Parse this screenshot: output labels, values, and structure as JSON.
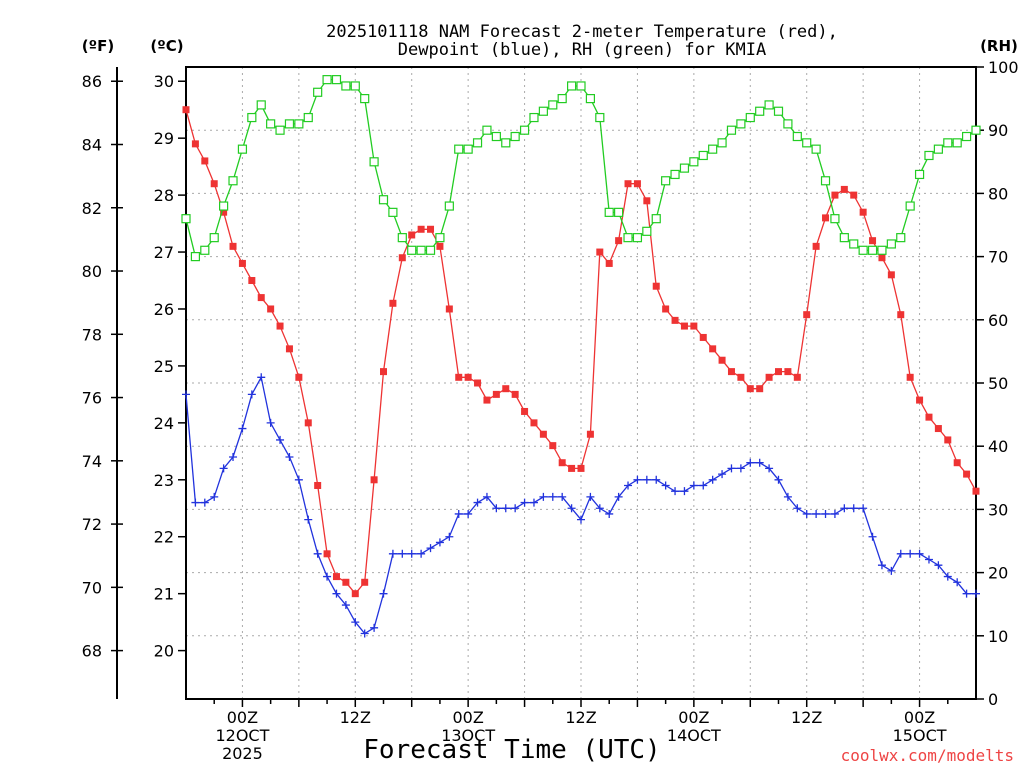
{
  "chart_data": {
    "type": "line",
    "title_line1": "2025101118 NAM Forecast 2-meter Temperature (red),",
    "title_line2": "Dewpoint (blue), RH (green) for KMIA",
    "xlabel": "Forecast Time (UTC)",
    "left_outer_unit": "(ºF)",
    "left_inner_unit": "(ºC)",
    "right_unit": "(RH)",
    "credit": "coolwx.com/modelts",
    "fahrenheit_ticks": [
      "86",
      "84",
      "82",
      "80",
      "78",
      "76",
      "74",
      "72",
      "70",
      "68"
    ],
    "celsius_ticks": [
      "30",
      "29",
      "28",
      "27",
      "26",
      "25",
      "24",
      "23",
      "22",
      "21",
      "20"
    ],
    "rh_ticks": [
      "100",
      "90",
      "80",
      "70",
      "60",
      "50",
      "40",
      "30",
      "20",
      "10",
      "0"
    ],
    "x_ticks": [
      {
        "hour": 6,
        "l1": "00Z",
        "l2": "12OCT",
        "l3": "2025"
      },
      {
        "hour": 18,
        "l1": "12Z",
        "l2": "",
        "l3": ""
      },
      {
        "hour": 30,
        "l1": "00Z",
        "l2": "13OCT",
        "l3": ""
      },
      {
        "hour": 42,
        "l1": "12Z",
        "l2": "",
        "l3": ""
      },
      {
        "hour": 54,
        "l1": "00Z",
        "l2": "14OCT",
        "l3": ""
      },
      {
        "hour": 66,
        "l1": "12Z",
        "l2": "",
        "l3": ""
      },
      {
        "hour": 78,
        "l1": "00Z",
        "l2": "15OCT",
        "l3": ""
      }
    ],
    "x_range_hours": [
      0,
      84
    ],
    "celsius_range": [
      19.15,
      30.25
    ],
    "fahrenheit_range": [
      66.47,
      86.45
    ],
    "rh_range": [
      0,
      100
    ],
    "grid": true,
    "series": [
      {
        "name": "Temperature",
        "color": "#ee3333",
        "marker": "filled-square",
        "values": [
          29.5,
          28.9,
          28.6,
          28.2,
          27.7,
          27.1,
          26.8,
          26.5,
          26.2,
          26.0,
          25.7,
          25.3,
          24.8,
          24.0,
          22.9,
          21.7,
          21.3,
          21.2,
          21.0,
          21.2,
          23.0,
          24.9,
          26.1,
          26.9,
          27.3,
          27.4,
          27.4,
          27.1,
          26.0,
          24.8,
          24.8,
          24.7,
          24.4,
          24.5,
          24.6,
          24.5,
          24.2,
          24.0,
          23.8,
          23.6,
          23.3,
          23.2,
          23.2,
          23.8,
          27.0,
          26.8,
          27.2,
          28.2,
          28.2,
          27.9,
          26.4,
          26.0,
          25.8,
          25.7,
          25.7,
          25.5,
          25.3,
          25.1,
          24.9,
          24.8,
          24.6,
          24.6,
          24.8,
          24.9,
          24.9,
          24.8,
          25.9,
          27.1,
          27.6,
          28.0,
          28.1,
          28.0,
          27.7,
          27.2,
          26.9,
          26.6,
          25.9,
          24.8,
          24.4,
          24.1,
          23.9,
          23.7,
          23.3,
          23.1,
          22.8
        ]
      },
      {
        "name": "Dewpoint",
        "color": "#2233dd",
        "marker": "plus",
        "values": [
          24.5,
          22.6,
          22.6,
          22.7,
          23.2,
          23.4,
          23.9,
          24.5,
          24.8,
          24.0,
          23.7,
          23.4,
          23.0,
          22.3,
          21.7,
          21.3,
          21.0,
          20.8,
          20.5,
          20.3,
          20.4,
          21.0,
          21.7,
          21.7,
          21.7,
          21.7,
          21.8,
          21.9,
          22.0,
          22.4,
          22.4,
          22.6,
          22.7,
          22.5,
          22.5,
          22.5,
          22.6,
          22.6,
          22.7,
          22.7,
          22.7,
          22.5,
          22.3,
          22.7,
          22.5,
          22.4,
          22.7,
          22.9,
          23.0,
          23.0,
          23.0,
          22.9,
          22.8,
          22.8,
          22.9,
          22.9,
          23.0,
          23.1,
          23.2,
          23.2,
          23.3,
          23.3,
          23.2,
          23.0,
          22.7,
          22.5,
          22.4,
          22.4,
          22.4,
          22.4,
          22.5,
          22.5,
          22.5,
          22.0,
          21.5,
          21.4,
          21.7,
          21.7,
          21.7,
          21.6,
          21.5,
          21.3,
          21.2,
          21.0,
          21.0
        ]
      },
      {
        "name": "RH",
        "color": "#22cc22",
        "marker": "open-square",
        "values": [
          76,
          70,
          71,
          73,
          78,
          82,
          87,
          92,
          94,
          91,
          90,
          91,
          91,
          92,
          96,
          98,
          98,
          97,
          97,
          95,
          85,
          79,
          77,
          73,
          71,
          71,
          71,
          73,
          78,
          87,
          87,
          88,
          90,
          89,
          88,
          89,
          90,
          92,
          93,
          94,
          95,
          97,
          97,
          95,
          92,
          77,
          77,
          73,
          73,
          74,
          76,
          82,
          83,
          84,
          85,
          86,
          87,
          88,
          90,
          91,
          92,
          93,
          94,
          93,
          91,
          89,
          88,
          87,
          82,
          76,
          73,
          72,
          71,
          71,
          71,
          72,
          73,
          78,
          83,
          86,
          87,
          88,
          88,
          89,
          90
        ]
      }
    ]
  }
}
